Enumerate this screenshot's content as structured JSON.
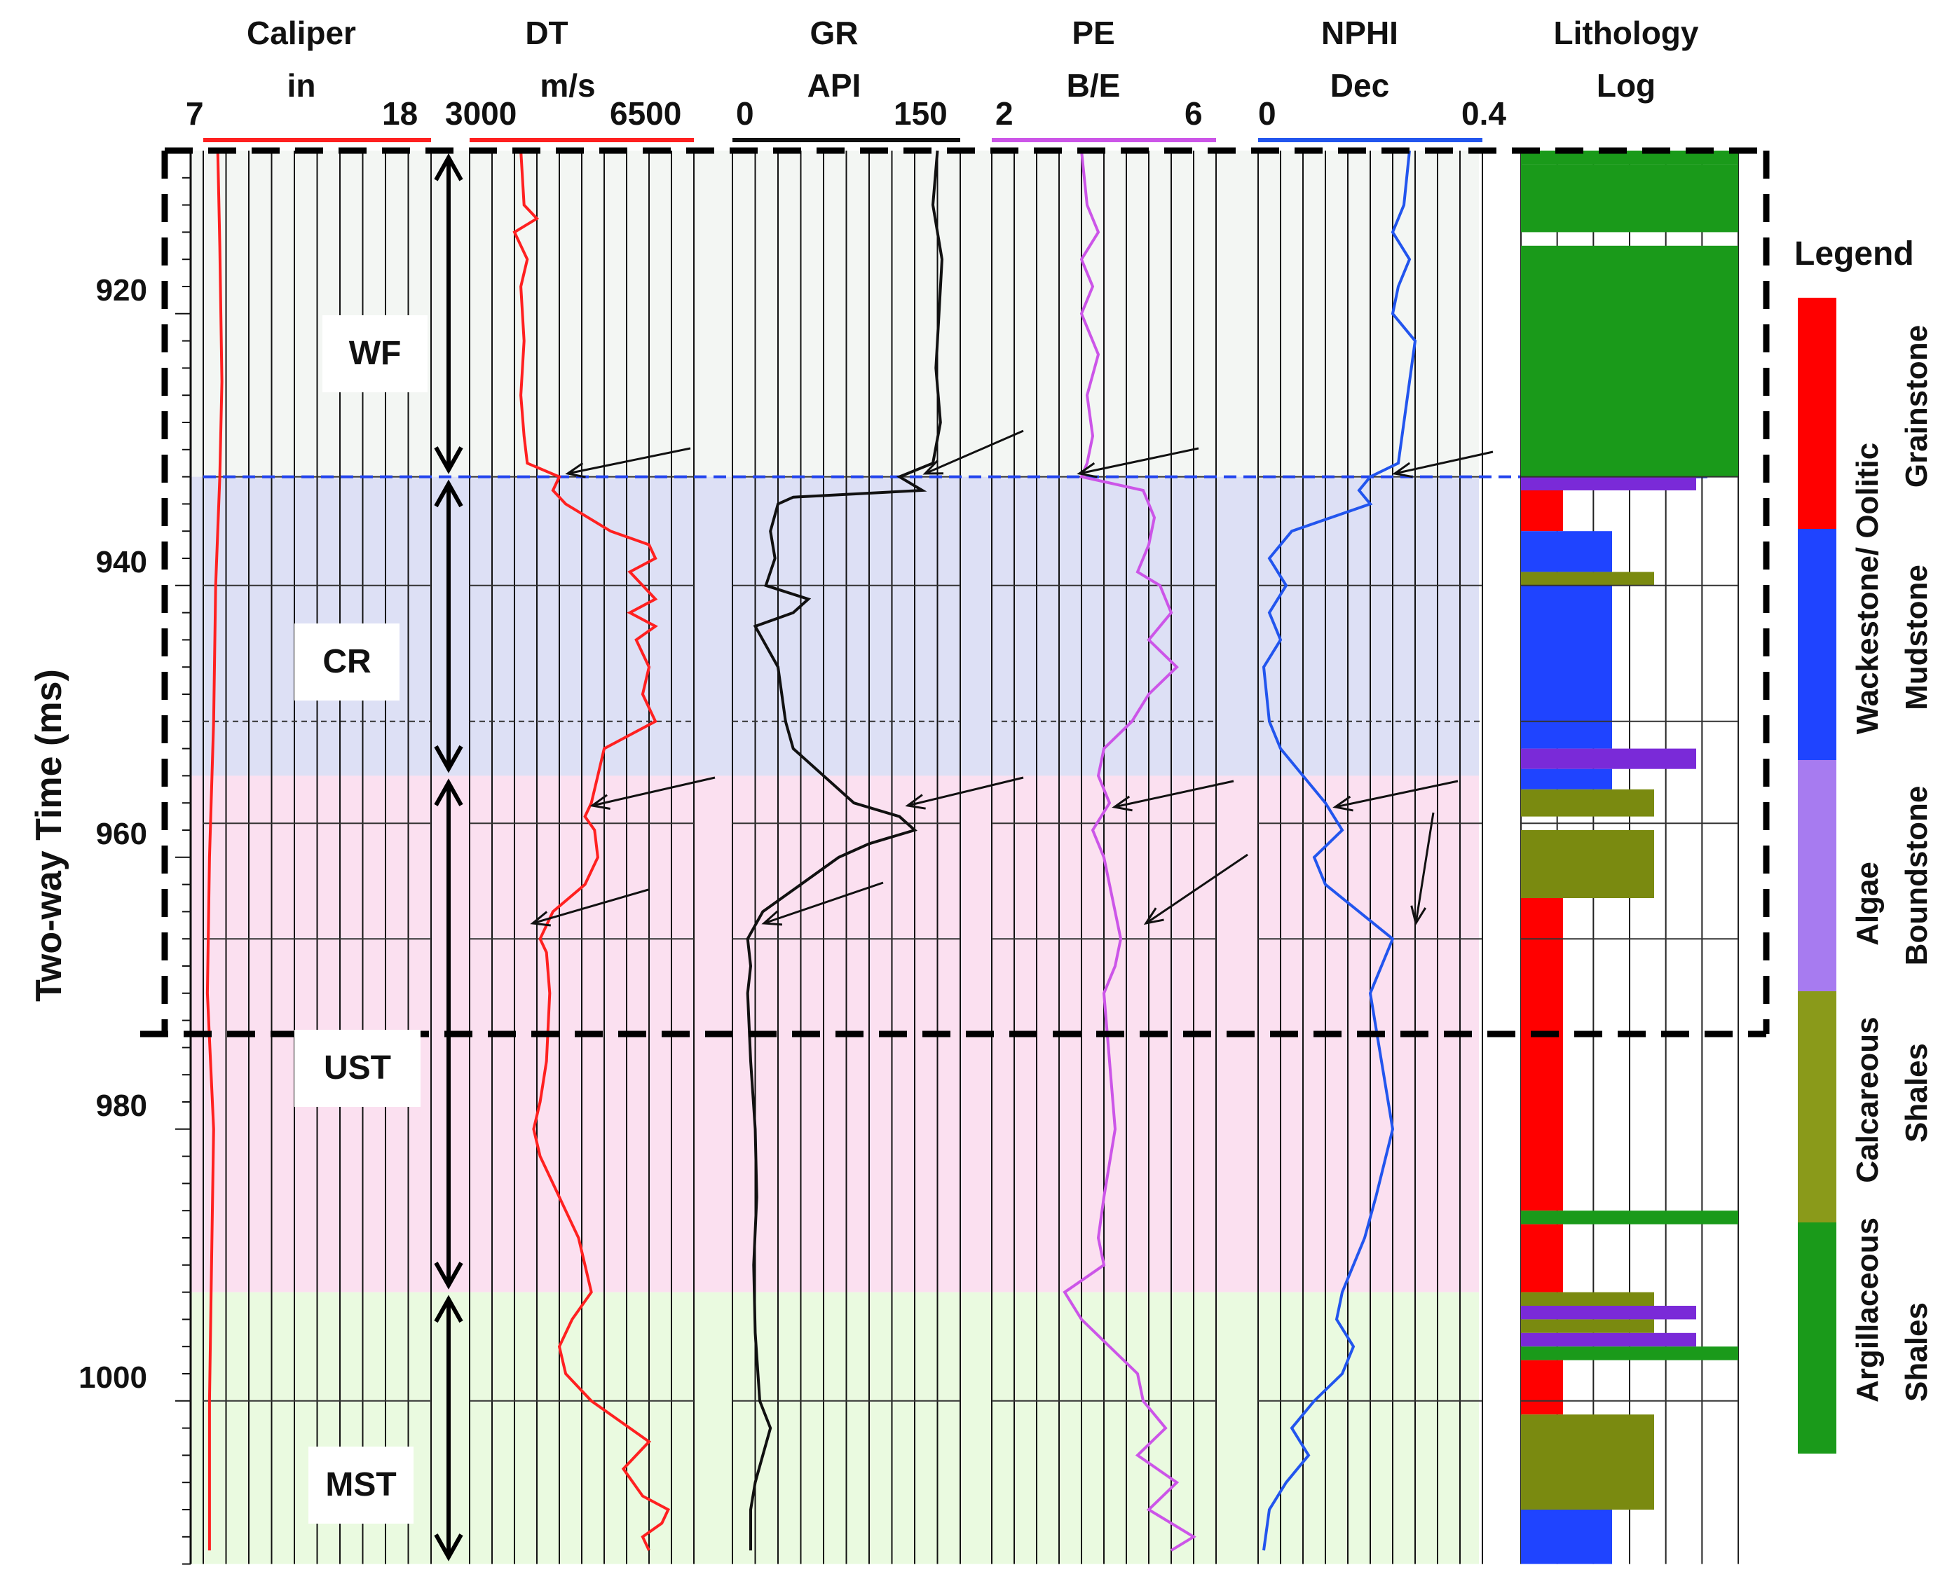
{
  "chart_data": {
    "type": "line",
    "title": "",
    "ylabel": "Two-way Time (ms)",
    "ylim": [
      908,
      1012
    ],
    "y_ticks": [
      920,
      940,
      960,
      980,
      1000
    ],
    "tracks": [
      {
        "name": "Caliper",
        "unit": "in",
        "min": "7",
        "max": "18",
        "color": "#ff2020",
        "series": [
          [
            908,
            7.7
          ],
          [
            915,
            7.8
          ],
          [
            925,
            7.9
          ],
          [
            932,
            7.8
          ],
          [
            940,
            7.6
          ],
          [
            950,
            7.5
          ],
          [
            960,
            7.3
          ],
          [
            970,
            7.2
          ],
          [
            980,
            7.5
          ],
          [
            990,
            7.4
          ],
          [
            1000,
            7.3
          ],
          [
            1011,
            7.3
          ]
        ]
      },
      {
        "name": "DT",
        "unit": "m/s",
        "min": "3000",
        "max": "6500",
        "color": "#ff2020",
        "series": [
          [
            908,
            3800
          ],
          [
            912,
            3850
          ],
          [
            913,
            4050
          ],
          [
            914,
            3700
          ],
          [
            916,
            3900
          ],
          [
            918,
            3800
          ],
          [
            922,
            3850
          ],
          [
            926,
            3800
          ],
          [
            929,
            3850
          ],
          [
            931,
            3900
          ],
          [
            932,
            4400
          ],
          [
            933,
            4300
          ],
          [
            934,
            4500
          ],
          [
            936,
            5200
          ],
          [
            937,
            5800
          ],
          [
            938,
            5900
          ],
          [
            939,
            5500
          ],
          [
            940,
            5700
          ],
          [
            941,
            5900
          ],
          [
            942,
            5500
          ],
          [
            943,
            5900
          ],
          [
            944,
            5600
          ],
          [
            946,
            5800
          ],
          [
            948,
            5700
          ],
          [
            950,
            5900
          ],
          [
            952,
            5100
          ],
          [
            954,
            5000
          ],
          [
            956,
            4900
          ],
          [
            957,
            4800
          ],
          [
            958,
            4950
          ],
          [
            960,
            5000
          ],
          [
            962,
            4800
          ],
          [
            964,
            4300
          ],
          [
            966,
            4100
          ],
          [
            967,
            4200
          ],
          [
            970,
            4250
          ],
          [
            975,
            4200
          ],
          [
            978,
            4100
          ],
          [
            980,
            4000
          ],
          [
            982,
            4100
          ],
          [
            984,
            4300
          ],
          [
            986,
            4500
          ],
          [
            988,
            4700
          ],
          [
            990,
            4800
          ],
          [
            992,
            4900
          ],
          [
            994,
            4600
          ],
          [
            996,
            4400
          ],
          [
            998,
            4500
          ],
          [
            1000,
            4900
          ],
          [
            1002,
            5500
          ],
          [
            1003,
            5800
          ],
          [
            1005,
            5400
          ],
          [
            1007,
            5700
          ],
          [
            1008,
            6100
          ],
          [
            1009,
            6000
          ],
          [
            1010,
            5700
          ],
          [
            1011,
            5800
          ]
        ]
      },
      {
        "name": "GR",
        "unit": "API",
        "min": "0",
        "max": "150",
        "color": "#111111",
        "series": [
          [
            908,
            135
          ],
          [
            912,
            132
          ],
          [
            916,
            138
          ],
          [
            920,
            136
          ],
          [
            924,
            134
          ],
          [
            928,
            137
          ],
          [
            931,
            132
          ],
          [
            932,
            110
          ],
          [
            933,
            125
          ],
          [
            933.5,
            40
          ],
          [
            934,
            30
          ],
          [
            936,
            25
          ],
          [
            938,
            28
          ],
          [
            940,
            22
          ],
          [
            941,
            50
          ],
          [
            942,
            40
          ],
          [
            943,
            15
          ],
          [
            946,
            30
          ],
          [
            950,
            35
          ],
          [
            952,
            40
          ],
          [
            954,
            60
          ],
          [
            956,
            80
          ],
          [
            957,
            110
          ],
          [
            958,
            120
          ],
          [
            959,
            90
          ],
          [
            960,
            70
          ],
          [
            962,
            45
          ],
          [
            964,
            20
          ],
          [
            966,
            10
          ],
          [
            968,
            12
          ],
          [
            970,
            10
          ],
          [
            975,
            12
          ],
          [
            980,
            15
          ],
          [
            985,
            16
          ],
          [
            990,
            14
          ],
          [
            995,
            15
          ],
          [
            1000,
            18
          ],
          [
            1002,
            25
          ],
          [
            1004,
            20
          ],
          [
            1006,
            15
          ],
          [
            1008,
            12
          ],
          [
            1011,
            12
          ]
        ]
      },
      {
        "name": "PE",
        "unit": "B/E",
        "min": "2",
        "max": "6",
        "color": "#cc55e8",
        "series": [
          [
            908,
            3.6
          ],
          [
            912,
            3.7
          ],
          [
            914,
            3.9
          ],
          [
            916,
            3.6
          ],
          [
            918,
            3.8
          ],
          [
            920,
            3.6
          ],
          [
            923,
            3.9
          ],
          [
            926,
            3.7
          ],
          [
            929,
            3.8
          ],
          [
            931,
            3.7
          ],
          [
            932,
            3.6
          ],
          [
            933,
            4.7
          ],
          [
            935,
            4.9
          ],
          [
            937,
            4.8
          ],
          [
            939,
            4.6
          ],
          [
            940,
            5.0
          ],
          [
            942,
            5.2
          ],
          [
            944,
            4.8
          ],
          [
            946,
            5.3
          ],
          [
            948,
            4.8
          ],
          [
            950,
            4.5
          ],
          [
            952,
            4.0
          ],
          [
            954,
            3.9
          ],
          [
            956,
            4.1
          ],
          [
            958,
            3.8
          ],
          [
            960,
            4.0
          ],
          [
            962,
            4.1
          ],
          [
            964,
            4.2
          ],
          [
            966,
            4.3
          ],
          [
            968,
            4.2
          ],
          [
            970,
            4.0
          ],
          [
            975,
            4.1
          ],
          [
            980,
            4.2
          ],
          [
            985,
            4.0
          ],
          [
            988,
            3.9
          ],
          [
            990,
            4.0
          ],
          [
            992,
            3.3
          ],
          [
            994,
            3.6
          ],
          [
            996,
            4.1
          ],
          [
            998,
            4.6
          ],
          [
            1000,
            4.7
          ],
          [
            1002,
            5.1
          ],
          [
            1004,
            4.6
          ],
          [
            1006,
            5.3
          ],
          [
            1008,
            4.8
          ],
          [
            1010,
            5.6
          ],
          [
            1011,
            5.2
          ]
        ]
      },
      {
        "name": "NPHI",
        "unit": "Dec",
        "min": "0",
        "max": "0.4",
        "color": "#2255ee",
        "series": [
          [
            908,
            0.27
          ],
          [
            912,
            0.26
          ],
          [
            914,
            0.24
          ],
          [
            916,
            0.27
          ],
          [
            918,
            0.25
          ],
          [
            920,
            0.24
          ],
          [
            922,
            0.28
          ],
          [
            925,
            0.27
          ],
          [
            928,
            0.26
          ],
          [
            931,
            0.25
          ],
          [
            932,
            0.2
          ],
          [
            933,
            0.18
          ],
          [
            934,
            0.2
          ],
          [
            936,
            0.06
          ],
          [
            938,
            0.02
          ],
          [
            940,
            0.05
          ],
          [
            942,
            0.02
          ],
          [
            944,
            0.04
          ],
          [
            946,
            0.01
          ],
          [
            950,
            0.02
          ],
          [
            952,
            0.04
          ],
          [
            954,
            0.08
          ],
          [
            956,
            0.12
          ],
          [
            958,
            0.15
          ],
          [
            960,
            0.1
          ],
          [
            962,
            0.12
          ],
          [
            964,
            0.18
          ],
          [
            966,
            0.24
          ],
          [
            968,
            0.22
          ],
          [
            970,
            0.2
          ],
          [
            975,
            0.22
          ],
          [
            980,
            0.24
          ],
          [
            985,
            0.21
          ],
          [
            988,
            0.19
          ],
          [
            990,
            0.17
          ],
          [
            992,
            0.15
          ],
          [
            994,
            0.14
          ],
          [
            996,
            0.17
          ],
          [
            998,
            0.15
          ],
          [
            1000,
            0.1
          ],
          [
            1002,
            0.06
          ],
          [
            1004,
            0.09
          ],
          [
            1006,
            0.05
          ],
          [
            1008,
            0.02
          ],
          [
            1011,
            0.01
          ]
        ]
      }
    ],
    "zones": [
      {
        "label": "WF",
        "from": 908,
        "to": 932,
        "color": "#f3f6f3"
      },
      {
        "label": "CR",
        "from": 932,
        "to": 954,
        "color": "#dde0f5"
      },
      {
        "label": "UST",
        "from": 954,
        "to": 992,
        "color": "#fbe0f0"
      },
      {
        "label": "MST",
        "from": 992,
        "to": 1012,
        "color": "#eafae0"
      }
    ],
    "lithology": [
      {
        "from": 908,
        "to": 909,
        "type": "Argillaceous Shales"
      },
      {
        "from": 909,
        "to": 914,
        "type": "Argillaceous Shales"
      },
      {
        "from": 915,
        "to": 932,
        "type": "Argillaceous Shales"
      },
      {
        "from": 932,
        "to": 933,
        "type": "Algae Boundstone"
      },
      {
        "from": 933,
        "to": 936,
        "type": "Oolitic Grainstone"
      },
      {
        "from": 936,
        "to": 939,
        "type": "Mudstone"
      },
      {
        "from": 939,
        "to": 940,
        "type": "Calcareous Shales"
      },
      {
        "from": 940,
        "to": 952,
        "type": "Mudstone"
      },
      {
        "from": 952,
        "to": 953.5,
        "type": "Algae Boundstone"
      },
      {
        "from": 953.5,
        "to": 955,
        "type": "Mudstone"
      },
      {
        "from": 955,
        "to": 957,
        "type": "Calcareous Shales"
      },
      {
        "from": 958,
        "to": 963,
        "type": "Calcareous Shales"
      },
      {
        "from": 963,
        "to": 986,
        "type": "Oolitic Grainstone"
      },
      {
        "from": 986,
        "to": 987,
        "type": "Argillaceous Shales"
      },
      {
        "from": 987,
        "to": 992,
        "type": "Oolitic Grainstone"
      },
      {
        "from": 992,
        "to": 993,
        "type": "Calcareous Shales"
      },
      {
        "from": 993,
        "to": 994,
        "type": "Algae Boundstone"
      },
      {
        "from": 994,
        "to": 995,
        "type": "Calcareous Shales"
      },
      {
        "from": 995,
        "to": 996,
        "type": "Algae Boundstone"
      },
      {
        "from": 996,
        "to": 997,
        "type": "Argillaceous Shales"
      },
      {
        "from": 997,
        "to": 1001,
        "type": "Oolitic Grainstone"
      },
      {
        "from": 1001,
        "to": 1003,
        "type": "Calcareous Shales"
      },
      {
        "from": 1003,
        "to": 1008,
        "type": "Calcareous Shales"
      },
      {
        "from": 1008,
        "to": 1012,
        "type": "Mudstone"
      }
    ],
    "legend": [
      {
        "label": "Wackestone/ Oolitic Grainstone",
        "color": "#ff0000"
      },
      {
        "label": "Mudstone",
        "color": "#1f44ff"
      },
      {
        "label": "Algae Boundstone",
        "color": "#a77bf0"
      },
      {
        "label": "Calcareous Shales",
        "color": "#8a9a1a"
      },
      {
        "label": "Argillaceous Shales",
        "color": "#1a9a1a"
      }
    ],
    "markers": [
      932,
      940,
      950,
      957.5,
      966,
      1000
    ],
    "dashed_boundaries": [
      908,
      973
    ]
  },
  "labels": {
    "yaxis_title": "Two-way Time (ms)",
    "legend_title": "Legend",
    "lith_title_1": "Lithology",
    "lith_title_2": "Log",
    "legend_text": [
      {
        "line1": "Wackestone/ Oolitic",
        "line2": "Grainstone"
      },
      {
        "line1": "Mudstone",
        "line2": ""
      },
      {
        "line1": "Algae",
        "line2": "Boundstone"
      },
      {
        "line1": "Calcareous",
        "line2": "Shales"
      },
      {
        "line1": "Argillaceous",
        "line2": "Shales"
      }
    ]
  }
}
